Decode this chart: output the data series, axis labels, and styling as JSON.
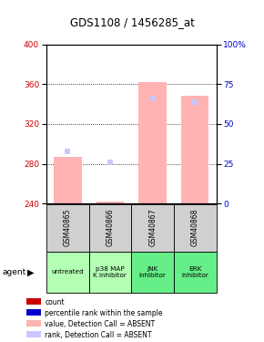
{
  "title": "GDS1108 / 1456285_at",
  "samples": [
    "GSM40865",
    "GSM40866",
    "GSM40867",
    "GSM40868"
  ],
  "agents": [
    "untreated",
    "p38 MAP\nK inhibitor",
    "JNK\ninhibitor",
    "ERK\ninhibitor"
  ],
  "agent_colors": [
    "#b3ffb3",
    "#b3ffb3",
    "#66ee88",
    "#66ee88"
  ],
  "bar_values_absent": [
    287,
    242,
    362,
    348
  ],
  "rank_pct_absent": [
    33,
    26,
    66,
    64
  ],
  "ylim_left": [
    240,
    400
  ],
  "ylim_right": [
    0,
    100
  ],
  "yticks_left": [
    240,
    280,
    320,
    360,
    400
  ],
  "yticks_right": [
    0,
    25,
    50,
    75,
    100
  ],
  "ytick_right_labels": [
    "0",
    "25",
    "50",
    "75",
    "100%"
  ],
  "left_color": "#cc0000",
  "right_color": "#0000cc",
  "bar_absent_color": "#ffb3b3",
  "rank_absent_color": "#c8c8ff",
  "count_color": "#cc0000",
  "pct_rank_color": "#0000cc",
  "legend_items": [
    {
      "color": "#cc0000",
      "label": "count"
    },
    {
      "color": "#0000cc",
      "label": "percentile rank within the sample"
    },
    {
      "color": "#ffb3b3",
      "label": "value, Detection Call = ABSENT"
    },
    {
      "color": "#c8c8ff",
      "label": "rank, Detection Call = ABSENT"
    }
  ]
}
